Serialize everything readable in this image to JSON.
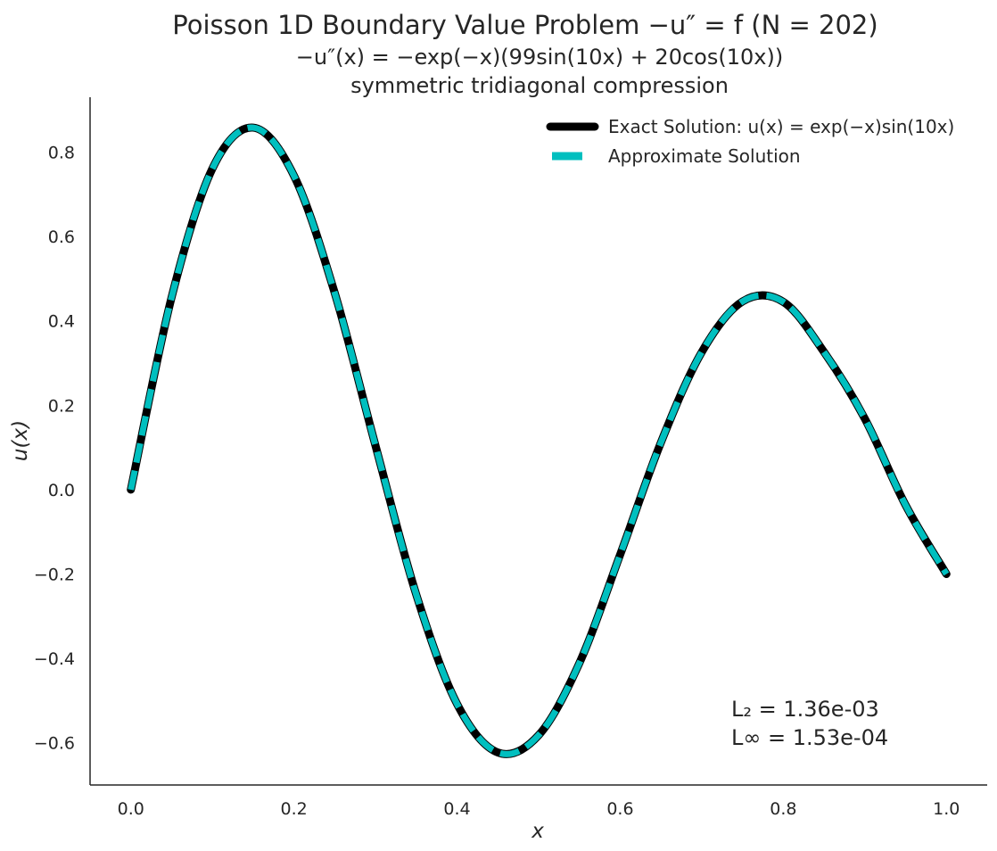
{
  "chart_data": {
    "type": "line",
    "title": "Poisson 1D Boundary Value Problem −u″ = f (N = 202)",
    "subtitle": "−u″(x) = −exp(−x)(99sin(10x) + 20cos(10x))",
    "subtitle2": "symmetric tridiagonal compression",
    "xlabel": "x",
    "ylabel": "u(x)",
    "xlim": [
      -0.05,
      1.05
    ],
    "ylim": [
      -0.7,
      0.93
    ],
    "xticks": [
      0.0,
      0.2,
      0.4,
      0.6,
      0.8,
      1.0
    ],
    "xtick_labels": [
      "0.0",
      "0.2",
      "0.4",
      "0.6",
      "0.8",
      "1.0"
    ],
    "yticks": [
      -0.6,
      -0.4,
      -0.2,
      0.0,
      0.2,
      0.4,
      0.6,
      0.8
    ],
    "ytick_labels": [
      "−0.6",
      "−0.4",
      "−0.2",
      "0.0",
      "0.2",
      "0.4",
      "0.6",
      "0.8"
    ],
    "grid": false,
    "legend_position": "top-right",
    "x": [
      0.0,
      0.05,
      0.1,
      0.15,
      0.2,
      0.25,
      0.3,
      0.35,
      0.4,
      0.45,
      0.5,
      0.55,
      0.6,
      0.65,
      0.7,
      0.75,
      0.8,
      0.85,
      0.9,
      0.95,
      1.0
    ],
    "series": [
      {
        "name": "Exact Solution: u(x) = exp(−x)sin(10x)",
        "color": "#000000",
        "style": "solid",
        "values": [
          0.0,
          0.456,
          0.761,
          0.858,
          0.744,
          0.466,
          0.104,
          -0.249,
          -0.508,
          -0.623,
          -0.582,
          -0.411,
          -0.154,
          0.112,
          0.326,
          0.446,
          0.445,
          0.326,
          0.168,
          -0.037,
          -0.2
        ]
      },
      {
        "name": "Approximate Solution",
        "color": "#00bfbf",
        "style": "dashed",
        "values": [
          0.0,
          0.456,
          0.761,
          0.858,
          0.744,
          0.466,
          0.104,
          -0.249,
          -0.508,
          -0.623,
          -0.582,
          -0.411,
          -0.154,
          0.112,
          0.326,
          0.446,
          0.445,
          0.326,
          0.168,
          -0.037,
          -0.2
        ]
      }
    ],
    "annotations": {
      "l2": "L₂ = 1.36e-03",
      "linf": "L∞ = 1.53e-04"
    }
  }
}
